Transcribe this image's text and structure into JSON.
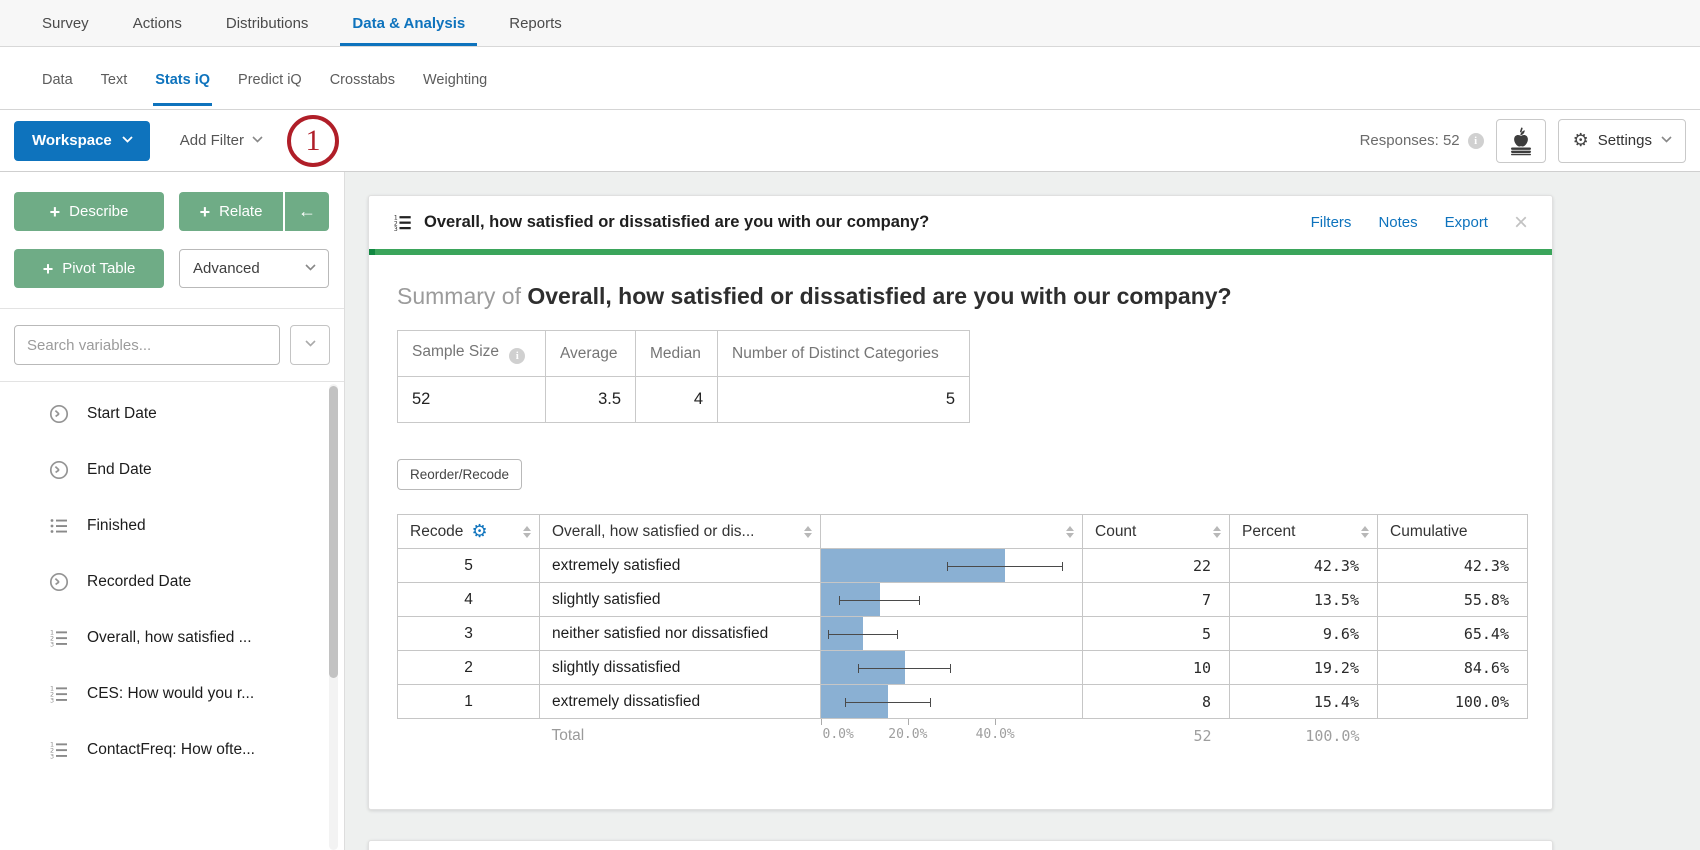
{
  "colors": {
    "accent_blue": "#0e73bd",
    "green_button": "#6fac86",
    "accent_green": "#3ba55b",
    "bar_blue": "#8ab0d3",
    "annotation_red": "#b01e28",
    "link_blue": "#1479c7"
  },
  "nav": {
    "items": [
      "Survey",
      "Actions",
      "Distributions",
      "Data & Analysis",
      "Reports"
    ],
    "active": "Data & Analysis"
  },
  "subnav": {
    "items": [
      "Data",
      "Text",
      "Stats iQ",
      "Predict iQ",
      "Crosstabs",
      "Weighting"
    ],
    "active": "Stats iQ"
  },
  "toolbar": {
    "workspace_label": "Workspace",
    "add_filter_label": "Add Filter",
    "annotation_number": "1",
    "responses_label": "Responses: 52",
    "settings_label": "Settings"
  },
  "sidebar": {
    "describe_label": "Describe",
    "relate_label": "Relate",
    "collapse_arrow": "←",
    "pivot_label": "Pivot Table",
    "advanced_label": "Advanced",
    "search_placeholder": "Search variables...",
    "variables": [
      {
        "label": "Start Date",
        "icon": "clock-icon"
      },
      {
        "label": "End Date",
        "icon": "clock-icon"
      },
      {
        "label": "Finished",
        "icon": "list-icon"
      },
      {
        "label": "Recorded Date",
        "icon": "clock-icon"
      },
      {
        "label": "Overall, how satisfied ...",
        "icon": "ordered-list-icon"
      },
      {
        "label": "CES: How would you r...",
        "icon": "ordered-list-icon"
      },
      {
        "label": "ContactFreq: How ofte...",
        "icon": "ordered-list-icon"
      }
    ]
  },
  "card": {
    "title": "Overall, how satisfied or dissatisfied are you with our company?",
    "links": [
      "Filters",
      "Notes",
      "Export"
    ],
    "close_label": "×",
    "summary_prefix": "Summary of",
    "summary_title": "Overall, how satisfied or dissatisfied are you with our company?",
    "summary_table": {
      "headers": [
        "Sample Size",
        "Average",
        "Median",
        "Number of Distinct Categories"
      ],
      "values": [
        "52",
        "3.5",
        "4",
        "5"
      ]
    },
    "reorder_button": "Reorder/Recode"
  },
  "chart_data": {
    "type": "bar",
    "orientation": "horizontal",
    "title": "Overall, how satisfied or dissatisfied are you with our company?",
    "columns": {
      "recode": "Recode",
      "label": "Overall, how satisfied or dis...",
      "count": "Count",
      "percent": "Percent",
      "cumulative": "Cumulative"
    },
    "xlim": [
      0,
      60
    ],
    "x_ticks": [
      0,
      20,
      40
    ],
    "x_tick_labels": [
      "0.0%",
      "20.0%",
      "40.0%"
    ],
    "error_bars": true,
    "rows": [
      {
        "recode": "5",
        "label": "extremely satisfied",
        "value": 42.3,
        "ci": [
          28.9,
          55.7
        ],
        "count": "22",
        "percent": "42.3%",
        "cumulative": "42.3%"
      },
      {
        "recode": "4",
        "label": "slightly satisfied",
        "value": 13.5,
        "ci": [
          4.2,
          22.8
        ],
        "count": "7",
        "percent": "13.5%",
        "cumulative": "55.8%"
      },
      {
        "recode": "3",
        "label": "neither satisfied nor dissatisfied",
        "value": 9.6,
        "ci": [
          1.6,
          17.6
        ],
        "count": "5",
        "percent": "9.6%",
        "cumulative": "65.4%"
      },
      {
        "recode": "2",
        "label": "slightly dissatisfied",
        "value": 19.2,
        "ci": [
          8.5,
          29.9
        ],
        "count": "10",
        "percent": "19.2%",
        "cumulative": "84.6%"
      },
      {
        "recode": "1",
        "label": "extremely dissatisfied",
        "value": 15.4,
        "ci": [
          5.6,
          25.2
        ],
        "count": "8",
        "percent": "15.4%",
        "cumulative": "100.0%"
      }
    ],
    "total": {
      "label": "Total",
      "count": "52",
      "percent": "100.0%"
    }
  }
}
